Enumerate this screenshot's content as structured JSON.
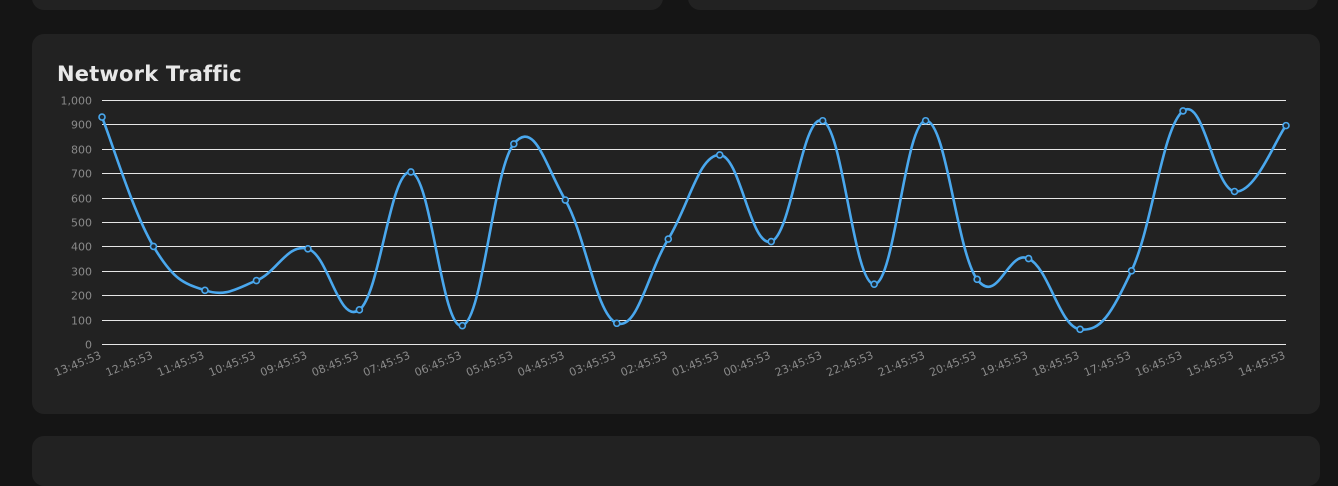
{
  "title": "Network Traffic",
  "colors": {
    "background": "#151515",
    "card": "#222222",
    "line": "#4aa8ee",
    "grid": "#e6e6e6",
    "tick_text": "#8a8a8a",
    "title": "#e8e8e8"
  },
  "chart_data": {
    "type": "line",
    "title": "Network Traffic",
    "xlabel": "",
    "ylabel": "",
    "ylim": [
      0,
      1000
    ],
    "yticks": [
      "0",
      "100",
      "200",
      "300",
      "400",
      "500",
      "600",
      "700",
      "800",
      "900",
      "1,000"
    ],
    "grid": true,
    "categories": [
      "13:45:53",
      "12:45:53",
      "11:45:53",
      "10:45:53",
      "09:45:53",
      "08:45:53",
      "07:45:53",
      "06:45:53",
      "05:45:53",
      "04:45:53",
      "03:45:53",
      "02:45:53",
      "01:45:53",
      "00:45:53",
      "23:45:53",
      "22:45:53",
      "21:45:53",
      "20:45:53",
      "19:45:53",
      "18:45:53",
      "17:45:53",
      "16:45:53",
      "15:45:53",
      "14:45:53"
    ],
    "series": [
      {
        "values": [
          930,
          400,
          220,
          260,
          390,
          140,
          705,
          75,
          820,
          590,
          85,
          430,
          775,
          420,
          915,
          245,
          915,
          265,
          350,
          60,
          300,
          955,
          625,
          895
        ]
      }
    ]
  }
}
